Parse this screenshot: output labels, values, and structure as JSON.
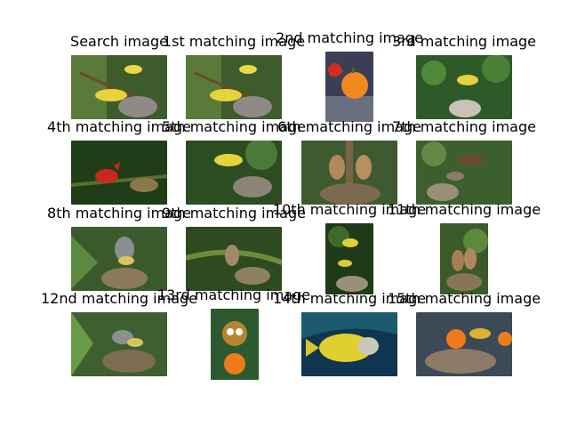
{
  "figure": {
    "panels": [
      {
        "title": "Search image",
        "icon": "yellow-bird-nest-icon"
      },
      {
        "title": "1st matching image",
        "icon": "yellow-bird-nest-icon"
      },
      {
        "title": "2nd matching image",
        "icon": "rooster-orange-icon"
      },
      {
        "title": "3rd matching image",
        "icon": "yellow-bird-nest-icon"
      },
      {
        "title": "4th matching image",
        "icon": "red-cardinal-nest-icon"
      },
      {
        "title": "5th matching image",
        "icon": "yellow-bird-nest-icon"
      },
      {
        "title": "6th matching image",
        "icon": "waxwing-nest-icon"
      },
      {
        "title": "7th matching image",
        "icon": "bird-nest-icon"
      },
      {
        "title": "8th matching image",
        "icon": "gray-bird-nest-icon"
      },
      {
        "title": "9th matching image",
        "icon": "bird-nest-icon"
      },
      {
        "title": "10th matching image",
        "icon": "yellow-bird-nest-icon"
      },
      {
        "title": "11th matching image",
        "icon": "waxwing-nest-icon"
      },
      {
        "title": "12nd matching image",
        "icon": "gray-bird-nest-icon"
      },
      {
        "title": "13rd matching image",
        "icon": "owl-figurine-icon"
      },
      {
        "title": "14th matching image",
        "icon": "fish-icon"
      },
      {
        "title": "15th matching image",
        "icon": "bird-figurine-icon"
      }
    ]
  }
}
